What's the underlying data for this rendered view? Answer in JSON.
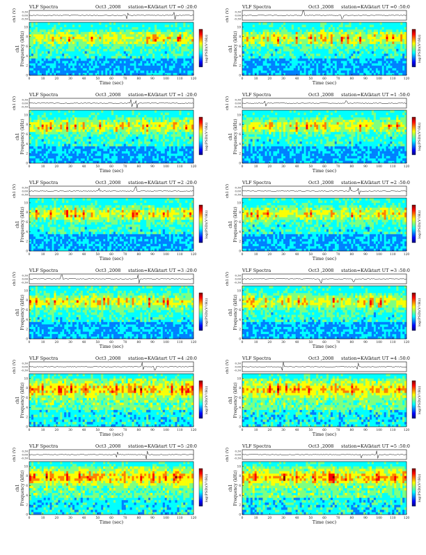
{
  "page": {
    "date_labels": {
      "left": "Oct3 ,2008",
      "right": "Oct3 ,2008"
    }
  },
  "chart_data": [
    {
      "type": "heatmap",
      "title_left": "VLF Spectra",
      "date": "Oct3 ,2008",
      "station": "station=KAG",
      "start": "start UT =0 :20:0",
      "xlabel": "Time (sec)",
      "ylabel": "Frequency (kHz)",
      "channel_label": "ch1",
      "trace_label": "ch1 (V)",
      "trace_ticks": [
        "0.30",
        "0.00",
        "-0.30"
      ],
      "colorbar_label": "log(PSD)(V²/Hz)",
      "x_ticks": [
        "0",
        "10",
        "20",
        "30",
        "40",
        "50",
        "60",
        "70",
        "80",
        "90",
        "100",
        "110",
        "120"
      ],
      "y_ticks": [
        "0",
        "2",
        "4",
        "6",
        "8",
        "10"
      ],
      "xlim": [
        0,
        120
      ],
      "ylim": [
        0,
        11
      ],
      "colormap": [
        "#00007f",
        "#0000ff",
        "#007fff",
        "#00ffff",
        "#7fff7f",
        "#ffff00",
        "#ff7f00",
        "#ff0000",
        "#7f0000"
      ]
    },
    {
      "type": "heatmap",
      "title_left": "VLF Spectra",
      "date": "Oct3 ,2008",
      "station": "station=KAG",
      "start": "start UT =0 :50:0",
      "xlabel": "Time (sec)",
      "ylabel": "Frequency (kHz)",
      "channel_label": "ch1",
      "trace_label": "ch1 (V)",
      "trace_ticks": [
        "0.30",
        "0.00",
        "-0.30"
      ],
      "colorbar_label": "log(PSD)(V²/Hz)",
      "x_ticks": [
        "0",
        "10",
        "20",
        "30",
        "40",
        "50",
        "60",
        "70",
        "80",
        "90",
        "100",
        "110",
        "120"
      ],
      "y_ticks": [
        "0",
        "2",
        "4",
        "6",
        "8",
        "10"
      ],
      "xlim": [
        0,
        120
      ],
      "ylim": [
        0,
        11
      ]
    },
    {
      "type": "heatmap",
      "title_left": "VLF Spectra",
      "date": "Oct3 ,2008",
      "station": "station=KAG",
      "start": "start UT =1 :20:0",
      "xlabel": "Time (sec)",
      "ylabel": "Frequency (kHz)",
      "channel_label": "ch1",
      "trace_label": "ch1 (V)",
      "trace_ticks": [
        "0.30",
        "0.00",
        "-0.30"
      ],
      "colorbar_label": "log(PSD)(V²/Hz)",
      "x_ticks": [
        "0",
        "10",
        "20",
        "30",
        "40",
        "50",
        "60",
        "70",
        "80",
        "90",
        "100",
        "110",
        "120"
      ],
      "y_ticks": [
        "0",
        "2",
        "4",
        "6",
        "8",
        "10"
      ],
      "xlim": [
        0,
        120
      ],
      "ylim": [
        0,
        11
      ]
    },
    {
      "type": "heatmap",
      "title_left": "VLF Spectra",
      "date": "Oct3 ,2008",
      "station": "station=KAG",
      "start": "start UT =1 :50:0",
      "xlabel": "Time (sec)",
      "ylabel": "Frequency (kHz)",
      "channel_label": "ch1",
      "trace_label": "ch1 (V)",
      "trace_ticks": [
        "0.30",
        "0.00",
        "-0.30"
      ],
      "colorbar_label": "log(PSD)(V²/Hz)",
      "x_ticks": [
        "0",
        "10",
        "20",
        "30",
        "40",
        "50",
        "60",
        "70",
        "80",
        "90",
        "100",
        "110",
        "120"
      ],
      "y_ticks": [
        "0",
        "2",
        "4",
        "6",
        "8",
        "10"
      ],
      "xlim": [
        0,
        120
      ],
      "ylim": [
        0,
        11
      ]
    },
    {
      "type": "heatmap",
      "title_left": "VLF Spectra",
      "date": "Oct3 ,2008",
      "station": "station=KAG",
      "start": "start UT =2 :20:0",
      "xlabel": "Time (sec)",
      "ylabel": "Frequency (kHz)",
      "channel_label": "ch1",
      "trace_label": "ch1 (V)",
      "trace_ticks": [
        "0.30",
        "0.00",
        "-0.30"
      ],
      "colorbar_label": "log(PSD)(V²/Hz)",
      "x_ticks": [
        "0",
        "10",
        "20",
        "30",
        "40",
        "50",
        "60",
        "70",
        "80",
        "90",
        "100",
        "110",
        "120"
      ],
      "y_ticks": [
        "0",
        "2",
        "4",
        "6",
        "8",
        "10"
      ],
      "xlim": [
        0,
        120
      ],
      "ylim": [
        0,
        11
      ]
    },
    {
      "type": "heatmap",
      "title_left": "VLF Spectra",
      "date": "Oct3 ,2008",
      "station": "station=KAG",
      "start": "start UT =2 :50:0",
      "xlabel": "Time (sec)",
      "ylabel": "Frequency (kHz)",
      "channel_label": "ch1",
      "trace_label": "ch1 (V)",
      "trace_ticks": [
        "0.30",
        "0.00",
        "-0.30"
      ],
      "colorbar_label": "log(PSD)(V²/Hz)",
      "x_ticks": [
        "0",
        "10",
        "20",
        "30",
        "40",
        "50",
        "60",
        "70",
        "80",
        "90",
        "100",
        "110",
        "120"
      ],
      "y_ticks": [
        "0",
        "2",
        "4",
        "6",
        "8",
        "10"
      ],
      "xlim": [
        0,
        120
      ],
      "ylim": [
        0,
        11
      ]
    },
    {
      "type": "heatmap",
      "title_left": "VLF Spectra",
      "date": "Oct3 ,2008",
      "station": "station=KAG",
      "start": "start UT =3 :20:0",
      "xlabel": "Time (sec)",
      "ylabel": "Frequency (kHz)",
      "channel_label": "ch1",
      "trace_label": "ch1 (V)",
      "trace_ticks": [
        "0.30",
        "0.00",
        "-0.30"
      ],
      "colorbar_label": "log(PSD)(V²/Hz)",
      "x_ticks": [
        "0",
        "10",
        "20",
        "30",
        "40",
        "50",
        "60",
        "70",
        "80",
        "90",
        "100",
        "110",
        "120"
      ],
      "y_ticks": [
        "0",
        "2",
        "4",
        "6",
        "8",
        "10"
      ],
      "xlim": [
        0,
        120
      ],
      "ylim": [
        0,
        11
      ]
    },
    {
      "type": "heatmap",
      "title_left": "VLF Spectra",
      "date": "Oct3 ,2008",
      "station": "station=KAG",
      "start": "start UT =3 :50:0",
      "xlabel": "Time (sec)",
      "ylabel": "Frequency (kHz)",
      "channel_label": "ch1",
      "trace_label": "ch1 (V)",
      "trace_ticks": [
        "0.30",
        "0.00",
        "-0.30"
      ],
      "colorbar_label": "log(PSD)(V²/Hz)",
      "x_ticks": [
        "0",
        "10",
        "20",
        "30",
        "40",
        "50",
        "60",
        "70",
        "80",
        "90",
        "100",
        "110",
        "120"
      ],
      "y_ticks": [
        "0",
        "2",
        "4",
        "6",
        "8",
        "10"
      ],
      "xlim": [
        0,
        120
      ],
      "ylim": [
        0,
        11
      ]
    },
    {
      "type": "heatmap",
      "title_left": "VLF Spectra",
      "date": "Oct3 ,2008",
      "station": "station=KAG",
      "start": "start UT =4 :20:0",
      "xlabel": "Time (sec)",
      "ylabel": "Frequency (kHz)",
      "channel_label": "ch1",
      "trace_label": "ch1 (V)",
      "trace_ticks": [
        "0.30",
        "0.00",
        "-0.30"
      ],
      "colorbar_label": "log(PSD)(V²/Hz)",
      "x_ticks": [
        "0",
        "10",
        "20",
        "30",
        "40",
        "50",
        "60",
        "70",
        "80",
        "90",
        "100",
        "110",
        "120"
      ],
      "y_ticks": [
        "0",
        "2",
        "4",
        "6",
        "8",
        "10"
      ],
      "xlim": [
        0,
        120
      ],
      "ylim": [
        0,
        11
      ]
    },
    {
      "type": "heatmap",
      "title_left": "VLF Spectra",
      "date": "Oct3 ,2008",
      "station": "station=KAG",
      "start": "start UT =4 :50:0",
      "xlabel": "Time (sec)",
      "ylabel": "Frequency (kHz)",
      "channel_label": "ch1",
      "trace_label": "ch1 (V)",
      "trace_ticks": [
        "0.30",
        "0.00",
        "-0.30"
      ],
      "colorbar_label": "log(PSD)(V²/Hz)",
      "x_ticks": [
        "0",
        "10",
        "20",
        "30",
        "40",
        "50",
        "60",
        "70",
        "80",
        "90",
        "100",
        "110",
        "120"
      ],
      "y_ticks": [
        "0",
        "2",
        "4",
        "6",
        "8",
        "10"
      ],
      "xlim": [
        0,
        120
      ],
      "ylim": [
        0,
        11
      ]
    },
    {
      "type": "heatmap",
      "title_left": "VLF Spectra",
      "date": "Oct3 ,2008",
      "station": "station=KAG",
      "start": "start UT =5 :20:0",
      "xlabel": "Time (sec)",
      "ylabel": "Frequency (kHz)",
      "channel_label": "ch1",
      "trace_label": "ch1 (V)",
      "trace_ticks": [
        "0.30",
        "0.00",
        "-0.30"
      ],
      "colorbar_label": "log(PSD)(V²/Hz)",
      "x_ticks": [
        "0",
        "10",
        "20",
        "30",
        "40",
        "50",
        "60",
        "70",
        "80",
        "90",
        "100",
        "110",
        "120"
      ],
      "y_ticks": [
        "0",
        "2",
        "4",
        "6",
        "8",
        "10"
      ],
      "xlim": [
        0,
        120
      ],
      "ylim": [
        0,
        11
      ]
    },
    {
      "type": "heatmap",
      "title_left": "VLF Spectra",
      "date": "Oct3 ,2008",
      "station": "station=KAG",
      "start": "start UT =5 :50:0",
      "xlabel": "Time (sec)",
      "ylabel": "Frequency (kHz)",
      "channel_label": "ch1",
      "trace_label": "ch1 (V)",
      "trace_ticks": [
        "0.30",
        "0.00",
        "-0.30"
      ],
      "colorbar_label": "log(PSD)(V²/Hz)",
      "x_ticks": [
        "0",
        "10",
        "20",
        "30",
        "40",
        "50",
        "60",
        "70",
        "80",
        "90",
        "100",
        "110",
        "120"
      ],
      "y_ticks": [
        "0",
        "2",
        "4",
        "6",
        "8",
        "10"
      ],
      "xlim": [
        0,
        120
      ],
      "ylim": [
        0,
        11
      ]
    }
  ]
}
